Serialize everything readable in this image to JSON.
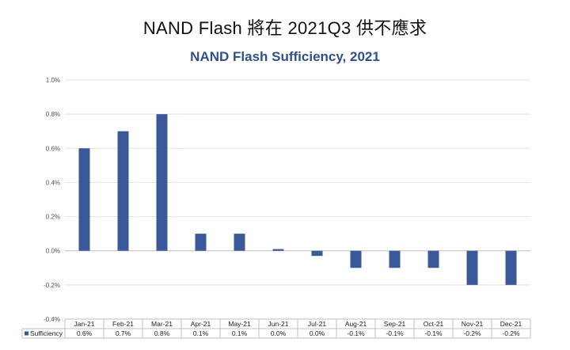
{
  "page": {
    "title": "NAND Flash 將在 2021Q3 供不應求"
  },
  "colors": {
    "bar": "#3b5998",
    "title": "#2f4f8f",
    "grid": "#e3e3e3",
    "axis": "#bfbfbf"
  },
  "chart_data": {
    "type": "bar",
    "title": "NAND Flash Sufficiency, 2021",
    "xlabel": "",
    "ylabel": "",
    "ylim": [
      -0.4,
      1.0
    ],
    "yticks": [
      -0.4,
      -0.2,
      0.0,
      0.2,
      0.4,
      0.6,
      0.8,
      1.0
    ],
    "ytick_labels": [
      "-0.4%",
      "-0.2%",
      "0.0%",
      "0.2%",
      "0.4%",
      "0.6%",
      "0.8%",
      "1.0%"
    ],
    "grid": true,
    "legend_position": "bottom-table",
    "categories": [
      "Jan-21",
      "Feb-21",
      "Mar-21",
      "Apr-21",
      "May-21",
      "Jun-21",
      "Jul-21",
      "Aug-21",
      "Sep-21",
      "Oct-21",
      "Nov-21",
      "Dec-21"
    ],
    "series": [
      {
        "name": "Sufficiency",
        "values": [
          0.6,
          0.7,
          0.8,
          0.1,
          0.1,
          0.01,
          -0.03,
          -0.1,
          -0.1,
          -0.1,
          -0.2,
          -0.2
        ],
        "labels": [
          "0.6%",
          "0.7%",
          "0.8%",
          "0.1%",
          "0.1%",
          "0.0%",
          "0.0%",
          "-0.1%",
          "-0.1%",
          "-0.1%",
          "-0.2%",
          "-0.2%"
        ]
      }
    ]
  }
}
